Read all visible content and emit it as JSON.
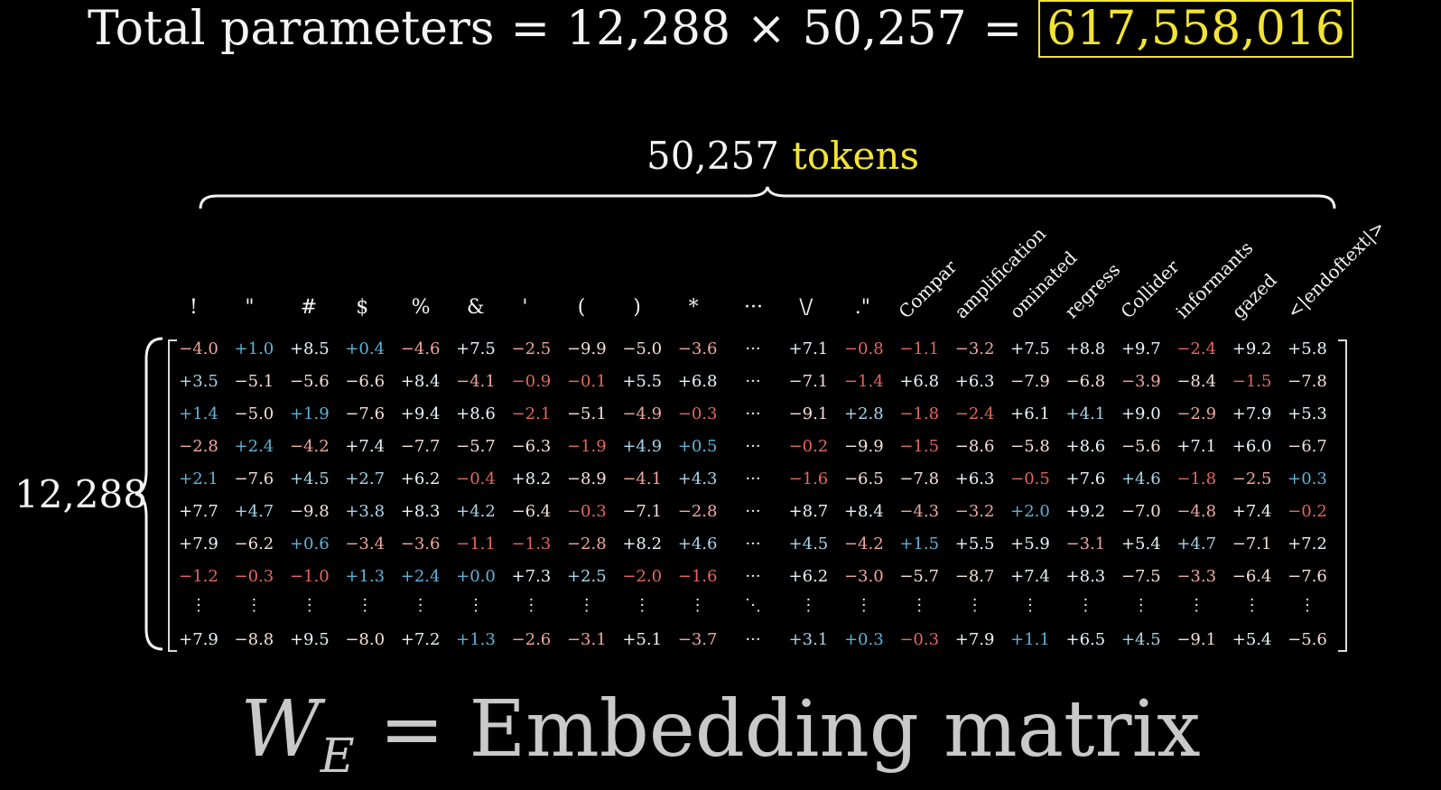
{
  "equation": {
    "label": "Total parameters",
    "rows": "12,288",
    "times": "×",
    "cols": "50,257",
    "equals": "=",
    "total": "617,558,016"
  },
  "tokens_header": {
    "count": "50,257",
    "word": "tokens"
  },
  "rows_label": "12,288",
  "column_labels": [
    "!",
    "\"",
    "#",
    "$",
    "%",
    "&",
    "'",
    "(",
    ")",
    "*",
    "···",
    "\\/",
    ".\"",
    "Compar",
    "amplification",
    "ominated",
    "regress",
    "Collider",
    "informants",
    "gazed",
    "<|endoftext|>"
  ],
  "matrix_rows": [
    [
      "-4.0",
      "+1.0",
      "+8.5",
      "+0.4",
      "-4.6",
      "+7.5",
      "-2.5",
      "-9.9",
      "-5.0",
      "-3.6",
      "···",
      "+7.1",
      "-0.8",
      "-1.1",
      "-3.2",
      "+7.5",
      "+8.8",
      "+9.7",
      "-2.4",
      "+9.2",
      "+5.8"
    ],
    [
      "+3.5",
      "-5.1",
      "-5.6",
      "-6.6",
      "+8.4",
      "-4.1",
      "-0.9",
      "-0.1",
      "+5.5",
      "+6.8",
      "···",
      "-7.1",
      "-1.4",
      "+6.8",
      "+6.3",
      "-7.9",
      "-6.8",
      "-3.9",
      "-8.4",
      "-1.5",
      "-7.8"
    ],
    [
      "+1.4",
      "-5.0",
      "+1.9",
      "-7.6",
      "+9.4",
      "+8.6",
      "-2.1",
      "-5.1",
      "-4.9",
      "-0.3",
      "···",
      "-9.1",
      "+2.8",
      "-1.8",
      "-2.4",
      "+6.1",
      "+4.1",
      "+9.0",
      "-2.9",
      "+7.9",
      "+5.3"
    ],
    [
      "-2.8",
      "+2.4",
      "-4.2",
      "+7.4",
      "-7.7",
      "-5.7",
      "-6.3",
      "-1.9",
      "+4.9",
      "+0.5",
      "···",
      "-0.2",
      "-9.9",
      "-1.5",
      "-8.6",
      "-5.8",
      "+8.6",
      "-5.6",
      "+7.1",
      "+6.0",
      "-6.7"
    ],
    [
      "+2.1",
      "-7.6",
      "+4.5",
      "+2.7",
      "+6.2",
      "-0.4",
      "+8.2",
      "-8.9",
      "-4.1",
      "+4.3",
      "···",
      "-1.6",
      "-6.5",
      "-7.8",
      "+6.3",
      "-0.5",
      "+7.6",
      "+4.6",
      "-1.8",
      "-2.5",
      "+0.3"
    ],
    [
      "+7.7",
      "+4.7",
      "-9.8",
      "+3.8",
      "+8.3",
      "+4.2",
      "-6.4",
      "-0.3",
      "-7.1",
      "-2.8",
      "···",
      "+8.7",
      "+8.4",
      "-4.3",
      "-3.2",
      "+2.0",
      "+9.2",
      "-7.0",
      "-4.8",
      "+7.4",
      "-0.2"
    ],
    [
      "+7.9",
      "-6.2",
      "+0.6",
      "-3.4",
      "-3.6",
      "-1.1",
      "-1.3",
      "-2.8",
      "+8.2",
      "+4.6",
      "···",
      "+4.5",
      "-4.2",
      "+1.5",
      "+5.5",
      "+5.9",
      "-3.1",
      "+5.4",
      "+4.7",
      "-7.1",
      "+7.2"
    ],
    [
      "-1.2",
      "-0.3",
      "-1.0",
      "+1.3",
      "+2.4",
      "+0.0",
      "+7.3",
      "+2.5",
      "-2.0",
      "-1.6",
      "···",
      "+6.2",
      "-3.0",
      "-5.7",
      "-8.7",
      "+7.4",
      "+8.3",
      "-7.5",
      "-3.3",
      "-6.4",
      "-7.6"
    ]
  ],
  "last_row": [
    "+7.9",
    "-8.8",
    "+9.5",
    "-8.0",
    "+7.2",
    "+1.3",
    "-2.6",
    "-3.1",
    "+5.1",
    "-3.7",
    "···",
    "+3.1",
    "+0.3",
    "-0.3",
    "+7.9",
    "+1.1",
    "+6.5",
    "+4.5",
    "-9.1",
    "+5.4",
    "-5.6"
  ],
  "vdots": "⋮",
  "ddots": "⋱",
  "bottom": {
    "w": "W",
    "sub": "E",
    "equals": "=",
    "text": "Embedding matrix"
  },
  "colors": {
    "yellow": "#f2e334",
    "positive": "#5fb3d8",
    "negative": "#e3685c",
    "text": "#f4f4f4"
  }
}
